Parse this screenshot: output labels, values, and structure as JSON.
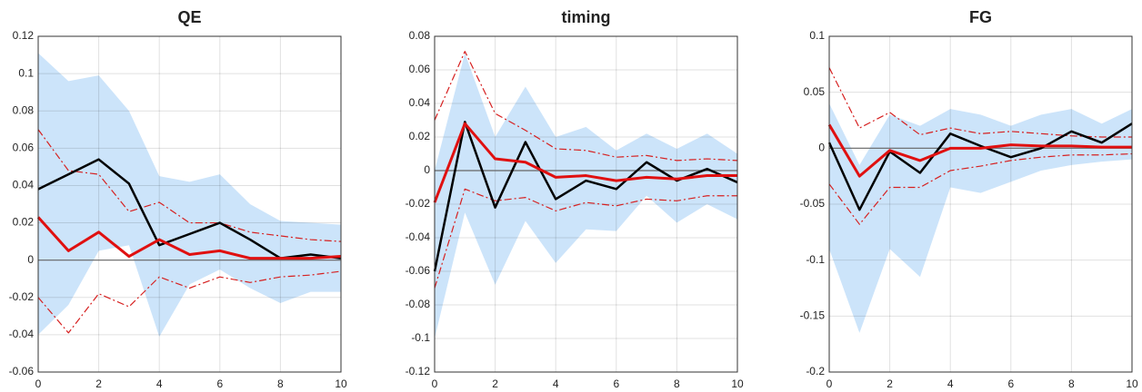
{
  "chart_data": [
    {
      "type": "line",
      "title": "QE",
      "x": [
        0,
        1,
        2,
        3,
        4,
        5,
        6,
        7,
        8,
        9,
        10
      ],
      "xlim": [
        0,
        10
      ],
      "xticks": [
        0,
        2,
        4,
        6,
        8,
        10
      ],
      "ylim": [
        -0.06,
        0.12
      ],
      "yticks": [
        -0.06,
        -0.04,
        -0.02,
        0,
        0.02,
        0.04,
        0.06,
        0.08,
        0.1,
        0.12
      ],
      "grid": true,
      "reference_line": 0,
      "band": {
        "color": "#cce4fa",
        "upper": [
          0.111,
          0.096,
          0.099,
          0.08,
          0.045,
          0.042,
          0.046,
          0.03,
          0.021,
          0.02,
          0.019
        ],
        "lower": [
          -0.04,
          -0.024,
          0.005,
          0.008,
          -0.041,
          -0.013,
          -0.005,
          -0.015,
          -0.023,
          -0.017,
          -0.017
        ]
      },
      "series": [
        {
          "color": "#d62020",
          "style": "dashdot",
          "values": [
            0.07,
            0.048,
            0.046,
            0.026,
            0.031,
            0.02,
            0.02,
            0.015,
            0.013,
            0.011,
            0.01
          ]
        },
        {
          "color": "#d62020",
          "style": "dashdot",
          "values": [
            -0.02,
            -0.039,
            -0.018,
            -0.025,
            -0.009,
            -0.015,
            -0.009,
            -0.012,
            -0.009,
            -0.008,
            -0.006
          ]
        },
        {
          "color": "#000000",
          "style": "solid",
          "values": [
            0.038,
            0.046,
            0.054,
            0.041,
            0.008,
            0.014,
            0.02,
            0.011,
            0.001,
            0.003,
            0.001
          ]
        },
        {
          "color": "#e01010",
          "style": "solid",
          "values": [
            0.023,
            0.005,
            0.015,
            0.002,
            0.011,
            0.003,
            0.005,
            0.001,
            0.001,
            0.001,
            0.002
          ]
        }
      ]
    },
    {
      "type": "line",
      "title": "timing",
      "x": [
        0,
        1,
        2,
        3,
        4,
        5,
        6,
        7,
        8,
        9,
        10
      ],
      "xlim": [
        0,
        10
      ],
      "xticks": [
        0,
        2,
        4,
        6,
        8,
        10
      ],
      "ylim": [
        -0.12,
        0.08
      ],
      "yticks": [
        -0.12,
        -0.1,
        -0.08,
        -0.06,
        -0.04,
        -0.02,
        0,
        0.02,
        0.04,
        0.06,
        0.08
      ],
      "grid": true,
      "reference_line": 0,
      "band": {
        "color": "#cce4fa",
        "upper": [
          0.0,
          0.07,
          0.02,
          0.05,
          0.02,
          0.026,
          0.012,
          0.022,
          0.013,
          0.022,
          0.01
        ],
        "lower": [
          -0.1,
          -0.025,
          -0.068,
          -0.03,
          -0.055,
          -0.035,
          -0.036,
          -0.015,
          -0.031,
          -0.02,
          -0.029
        ]
      },
      "series": [
        {
          "color": "#d62020",
          "style": "dashdot",
          "values": [
            0.03,
            0.071,
            0.034,
            0.024,
            0.013,
            0.012,
            0.008,
            0.009,
            0.006,
            0.007,
            0.006
          ]
        },
        {
          "color": "#d62020",
          "style": "dashdot",
          "values": [
            -0.07,
            -0.011,
            -0.018,
            -0.016,
            -0.024,
            -0.019,
            -0.021,
            -0.017,
            -0.018,
            -0.015,
            -0.015
          ]
        },
        {
          "color": "#000000",
          "style": "solid",
          "values": [
            -0.06,
            0.029,
            -0.022,
            0.017,
            -0.017,
            -0.006,
            -0.011,
            0.005,
            -0.006,
            0.001,
            -0.007
          ]
        },
        {
          "color": "#e01010",
          "style": "solid",
          "values": [
            -0.019,
            0.028,
            0.007,
            0.005,
            -0.004,
            -0.003,
            -0.006,
            -0.004,
            -0.005,
            -0.003,
            -0.003
          ]
        }
      ]
    },
    {
      "type": "line",
      "title": "FG",
      "x": [
        0,
        1,
        2,
        3,
        4,
        5,
        6,
        7,
        8,
        9,
        10
      ],
      "xlim": [
        0,
        10
      ],
      "xticks": [
        0,
        2,
        4,
        6,
        8,
        10
      ],
      "ylim": [
        -0.2,
        0.1
      ],
      "yticks": [
        -0.2,
        -0.15,
        -0.1,
        -0.05,
        0,
        0.05,
        0.1
      ],
      "grid": true,
      "reference_line": 0,
      "band": {
        "color": "#cce4fa",
        "upper": [
          0.04,
          -0.015,
          0.03,
          0.02,
          0.035,
          0.03,
          0.02,
          0.03,
          0.035,
          0.022,
          0.035
        ],
        "lower": [
          -0.09,
          -0.165,
          -0.09,
          -0.115,
          -0.035,
          -0.04,
          -0.03,
          -0.02,
          -0.015,
          -0.012,
          -0.01
        ]
      },
      "series": [
        {
          "color": "#d62020",
          "style": "dashdot",
          "values": [
            0.072,
            0.018,
            0.032,
            0.012,
            0.018,
            0.013,
            0.015,
            0.013,
            0.011,
            0.01,
            0.01
          ]
        },
        {
          "color": "#d62020",
          "style": "dashdot",
          "values": [
            -0.032,
            -0.068,
            -0.035,
            -0.035,
            -0.02,
            -0.016,
            -0.011,
            -0.008,
            -0.006,
            -0.006,
            -0.005
          ]
        },
        {
          "color": "#000000",
          "style": "solid",
          "values": [
            0.005,
            -0.055,
            -0.003,
            -0.022,
            0.013,
            0.002,
            -0.008,
            0.0,
            0.015,
            0.005,
            0.022
          ]
        },
        {
          "color": "#e01010",
          "style": "solid",
          "values": [
            0.021,
            -0.025,
            -0.002,
            -0.011,
            0.0,
            0.0,
            0.003,
            0.002,
            0.002,
            0.001,
            0.001
          ]
        }
      ]
    }
  ]
}
